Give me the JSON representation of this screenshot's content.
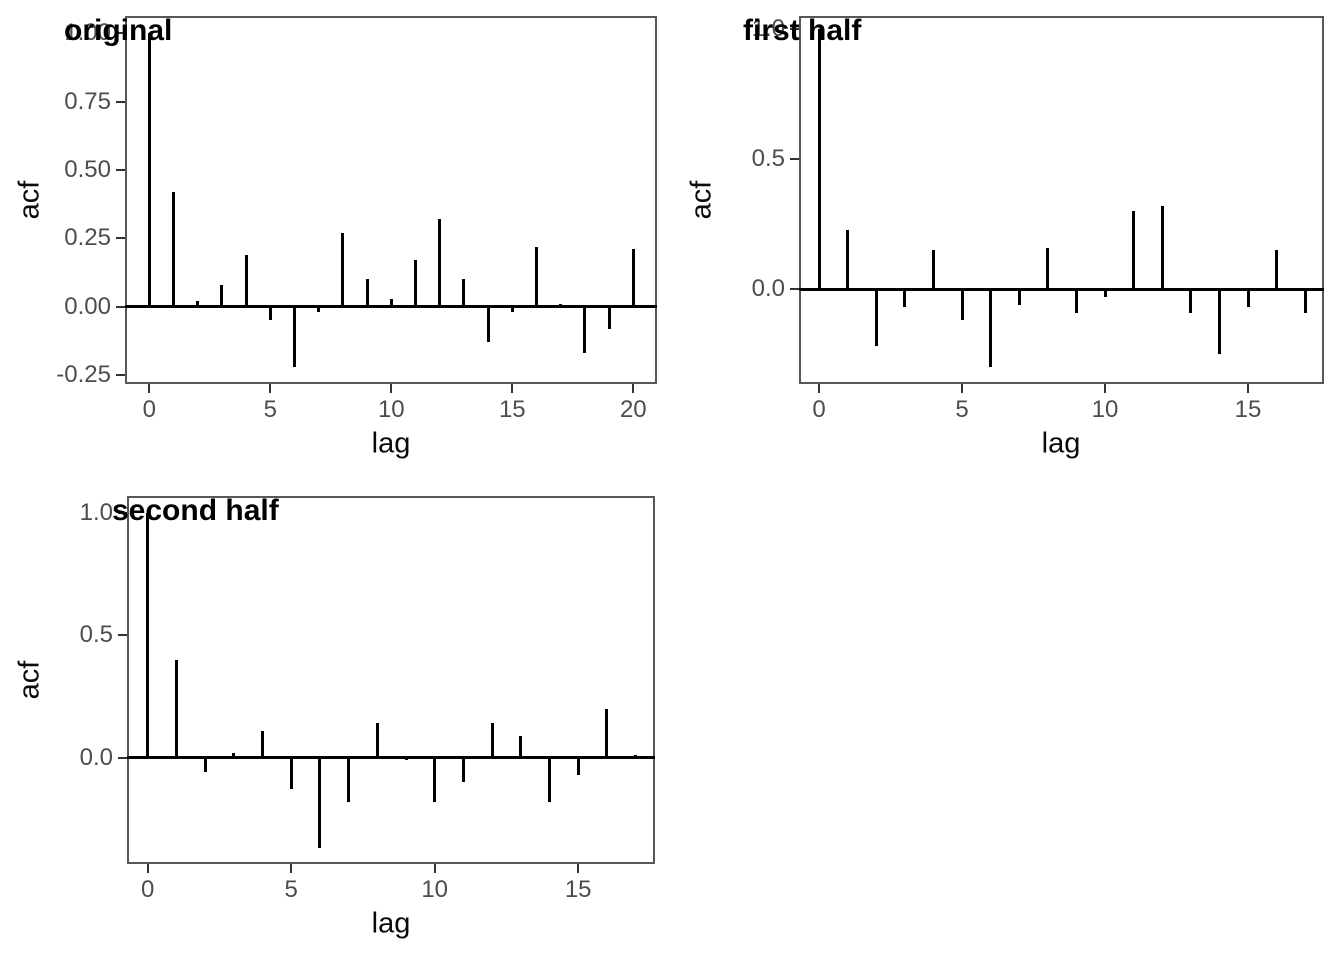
{
  "style": {
    "background": "#ffffff",
    "bar_color": "#000000",
    "panel_border_color": "#575757",
    "tick_mark_color": "#333333",
    "tick_label_color": "#4d4d4d",
    "axis_title_color": "#0a0a0a",
    "title_color": "#000000"
  },
  "chart_data": [
    {
      "type": "bar",
      "variant": "acf-lollipop",
      "title": "original",
      "xlabel": "lag",
      "ylabel": "acf",
      "x": [
        0,
        1,
        2,
        3,
        4,
        5,
        6,
        7,
        8,
        9,
        10,
        11,
        12,
        13,
        14,
        15,
        16,
        17,
        18,
        19,
        20
      ],
      "values": [
        1.0,
        0.42,
        0.02,
        0.08,
        0.19,
        -0.05,
        -0.22,
        -0.02,
        0.27,
        0.1,
        0.03,
        0.17,
        0.32,
        0.1,
        -0.13,
        -0.02,
        0.22,
        0.01,
        -0.17,
        -0.08,
        0.21
      ],
      "xticks": {
        "values": [
          0,
          5,
          10,
          15,
          20
        ],
        "labels": [
          "0",
          "5",
          "10",
          "15",
          "20"
        ]
      },
      "yticks": {
        "values": [
          1.0,
          0.75,
          0.5,
          0.25,
          0.0,
          -0.25
        ],
        "labels": [
          "1.00",
          "0.75",
          "0.50",
          "0.25",
          "0.00",
          "-0.25"
        ]
      },
      "xlim": [
        -1.05,
        21.05
      ],
      "ylim": [
        -0.281,
        1.061
      ],
      "grid": false,
      "legend": null
    },
    {
      "type": "bar",
      "variant": "acf-lollipop",
      "title": "first half",
      "xlabel": "lag",
      "ylabel": "acf",
      "x": [
        0,
        1,
        2,
        3,
        4,
        5,
        6,
        7,
        8,
        9,
        10,
        11,
        12,
        13,
        14,
        15,
        16,
        17
      ],
      "values": [
        1.0,
        0.23,
        -0.22,
        -0.07,
        0.15,
        -0.12,
        -0.3,
        -0.06,
        0.16,
        -0.09,
        -0.03,
        0.3,
        0.32,
        -0.09,
        -0.25,
        -0.07,
        0.15,
        -0.09
      ],
      "xticks": {
        "values": [
          0,
          5,
          10,
          15
        ],
        "labels": [
          "0",
          "5",
          "10",
          "15"
        ]
      },
      "yticks": {
        "values": [
          1.0,
          0.5,
          0.0
        ],
        "labels": [
          "1.0",
          "0.5",
          "0.0"
        ]
      },
      "xlim": [
        -0.85,
        17.85
      ],
      "ylim": [
        -0.365,
        1.065
      ],
      "grid": false,
      "legend": null
    },
    {
      "type": "bar",
      "variant": "acf-lollipop",
      "title": "second half",
      "xlabel": "lag",
      "ylabel": "acf",
      "x": [
        0,
        1,
        2,
        3,
        4,
        5,
        6,
        7,
        8,
        9,
        10,
        11,
        12,
        13,
        14,
        15,
        16,
        17
      ],
      "values": [
        1.0,
        0.4,
        -0.06,
        0.02,
        0.11,
        -0.13,
        -0.37,
        -0.18,
        0.14,
        -0.01,
        -0.18,
        -0.1,
        0.14,
        0.09,
        -0.18,
        -0.07,
        0.2,
        0.01
      ],
      "xticks": {
        "values": [
          0,
          5,
          10,
          15
        ],
        "labels": [
          "0",
          "5",
          "10",
          "15"
        ]
      },
      "yticks": {
        "values": [
          1.0,
          0.5,
          0.0
        ],
        "labels": [
          "1.0",
          "0.5",
          "0.0"
        ]
      },
      "xlim": [
        -0.85,
        17.85
      ],
      "ylim": [
        -0.4385,
        1.0685
      ],
      "grid": false,
      "legend": null
    }
  ]
}
